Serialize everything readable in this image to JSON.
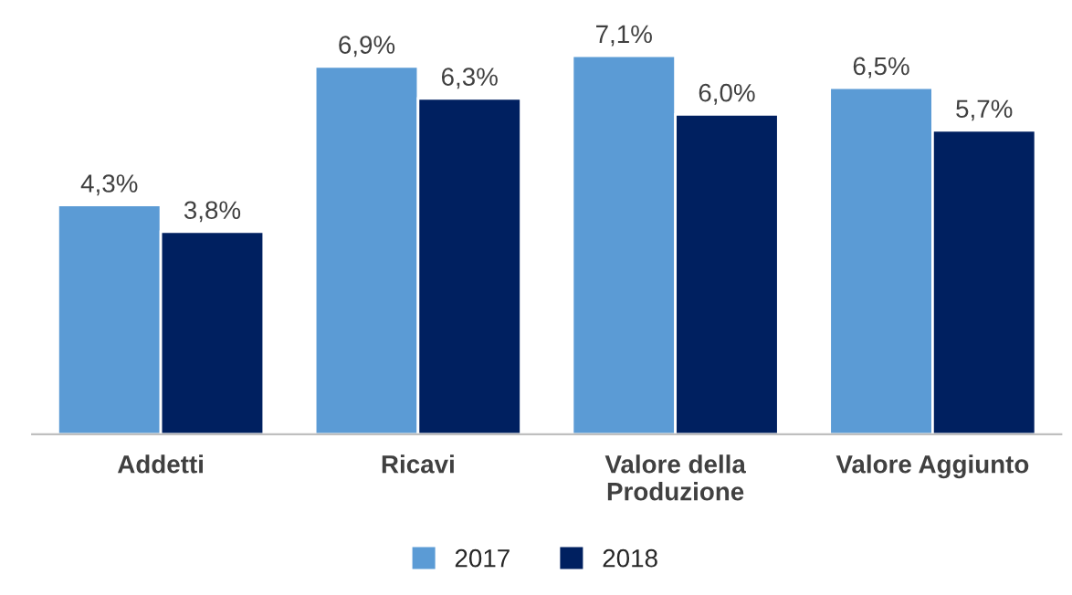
{
  "chart_data": {
    "type": "bar",
    "categories": [
      "Addetti",
      "Ricavi",
      "Valore della\nProduzione",
      "Valore Aggiunto"
    ],
    "series": [
      {
        "name": "2017",
        "color": "#5b9bd5",
        "values": [
          4.3,
          6.9,
          7.1,
          6.5
        ],
        "value_labels": [
          "4,3%",
          "6,9%",
          "7,1%",
          "6,5%"
        ]
      },
      {
        "name": "2018",
        "color": "#002060",
        "values": [
          3.8,
          6.3,
          6.0,
          5.7
        ],
        "value_labels": [
          "3,8%",
          "6,3%",
          "6,0%",
          "5,7%"
        ]
      }
    ],
    "legend": "bottom",
    "tick_labels": "x"
  }
}
